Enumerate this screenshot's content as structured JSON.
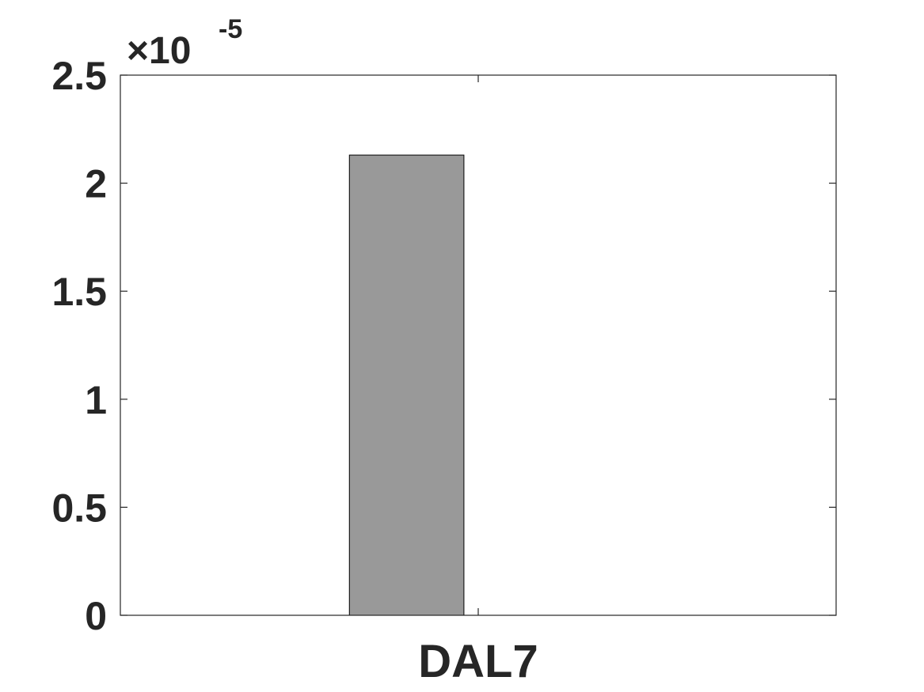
{
  "chart_data": {
    "type": "bar",
    "categories": [
      "DAL7"
    ],
    "series": [
      {
        "values": [
          2.13e-05
        ],
        "color": "#999999"
      }
    ],
    "ylim": [
      0,
      2.5e-05
    ],
    "yticks": [
      0,
      5e-06,
      1e-05,
      1.5e-05,
      2e-05,
      2.5e-05
    ],
    "ytick_labels": [
      "0",
      "0.5",
      "1",
      "1.5",
      "2",
      "2.5"
    ],
    "y_exponent": {
      "prefix": "×10",
      "power": "-5"
    },
    "xlabel": "",
    "ylabel": "",
    "grid": false,
    "box": true
  }
}
